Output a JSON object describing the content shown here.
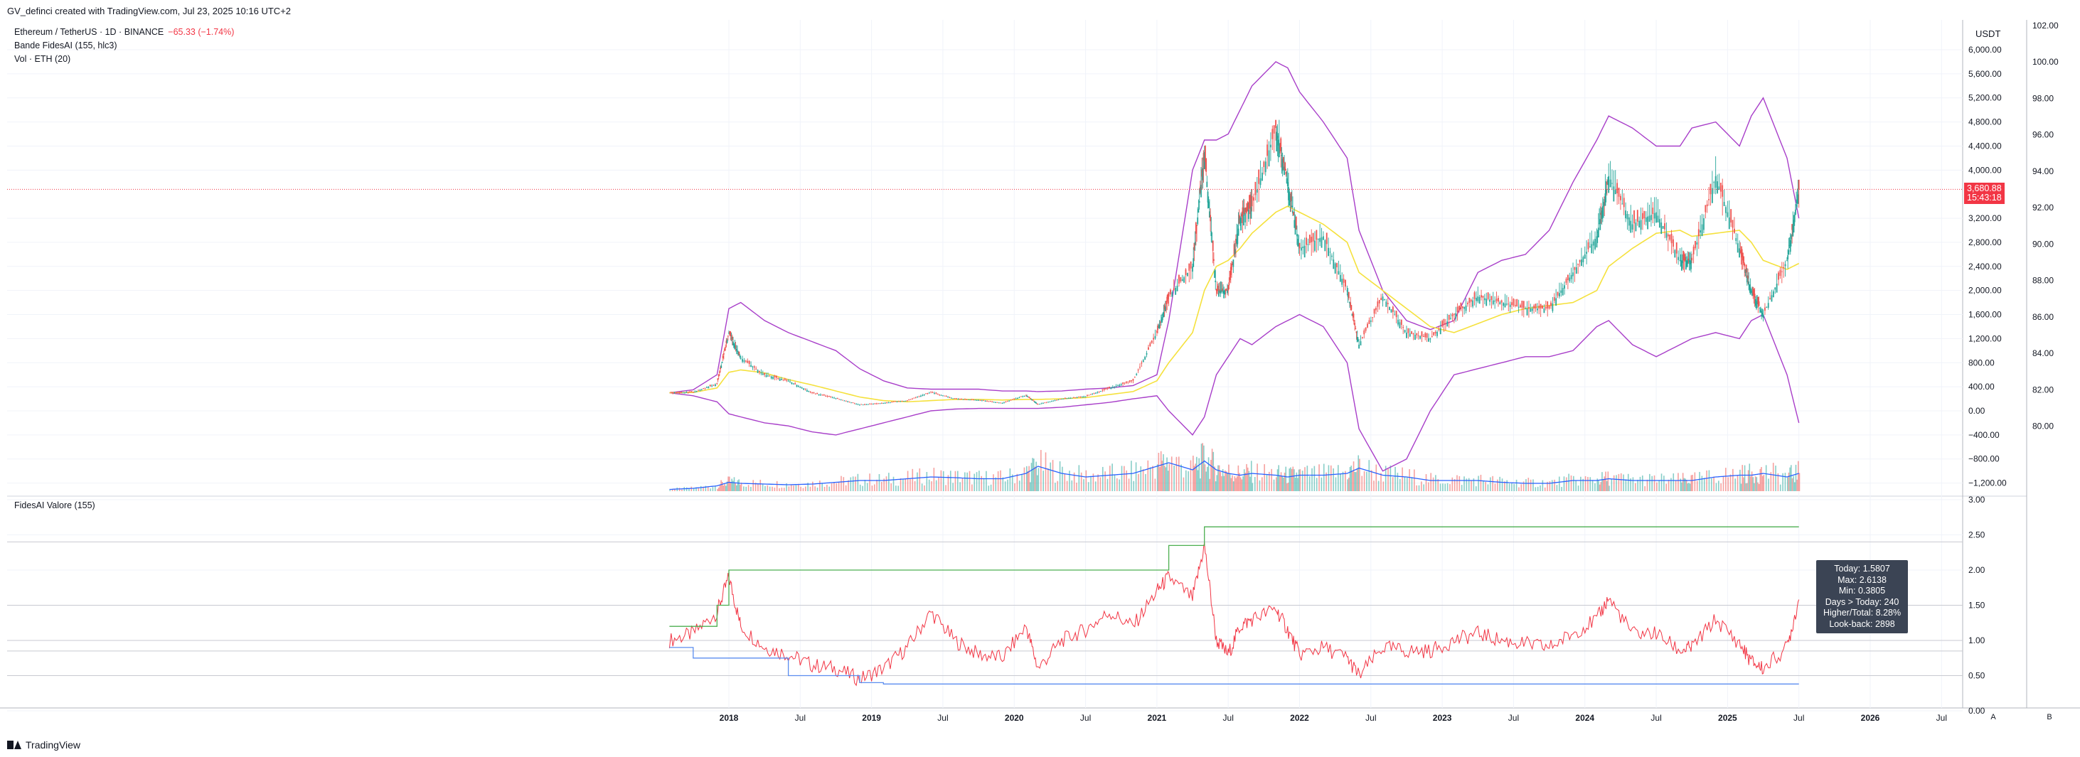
{
  "header": {
    "credit": "GV_definci created with TradingView.com, Jul 23, 2025 10:16 UTC+2"
  },
  "legend": {
    "symbol": "Ethereum / TetherUS · 1D · BINANCE",
    "change": "−65.33 (−1.74%)",
    "indicator_1": "Bande FidesAI (155, hlc3)",
    "indicator_2": "Vol · ETH (20)",
    "lower_pane_title": "FidesAI Valore (155)"
  },
  "price_axis": {
    "unit": "USDT",
    "labels": [
      "6,000.00",
      "5,600.00",
      "5,200.00",
      "4,800.00",
      "4,400.00",
      "4,000.00",
      "3,200.00",
      "2,800.00",
      "2,400.00",
      "2,000.00",
      "1,600.00",
      "1,200.00",
      "800.00",
      "400.00",
      "0.00",
      "−400.00",
      "−800.00",
      "−1,200.00"
    ],
    "current_price": "3,680.88",
    "countdown": "15:43:18"
  },
  "secondary_axis": {
    "labels": [
      "102.00",
      "100.00",
      "98.00",
      "96.00",
      "94.00",
      "92.00",
      "90.00",
      "88.00",
      "86.00",
      "84.00",
      "82.00",
      "80.00"
    ]
  },
  "lower_axis": {
    "labels": [
      "3.00",
      "2.50",
      "2.00",
      "1.50",
      "1.00",
      "0.50",
      "0.00"
    ]
  },
  "time_axis": {
    "labels": [
      "2018",
      "Jul",
      "2019",
      "Jul",
      "2020",
      "Jul",
      "2021",
      "Jul",
      "2022",
      "Jul",
      "2023",
      "Jul",
      "2024",
      "Jul",
      "2025",
      "Jul",
      "2026",
      "Jul"
    ]
  },
  "scale_buttons": {
    "a": "A",
    "b": "B"
  },
  "stats_box": {
    "lines": [
      "Today: 1.5807",
      "Max: 2.6138",
      "Min: 0.3805",
      "Days > Today: 240",
      "Higher/Total: 8.28%",
      "Look-back: 2898"
    ]
  },
  "footer": {
    "brand": "TradingView"
  },
  "colors": {
    "up": "#26a69a",
    "down": "#ef5350",
    "band": "#a83ec9",
    "midline": "#f5e13d",
    "volume_ma": "#2962ff",
    "valore_line": "#f23645",
    "max_line": "#4caf50",
    "min_line": "#5b8def",
    "price_flag": "#f23645",
    "stats_bg": "#3b4454"
  },
  "chart_data": [
    {
      "type": "line",
      "title": "Ethereum / TetherUS · 1D · BINANCE",
      "ylabel": "USDT",
      "ylim": [
        -1400,
        6200
      ],
      "x": [
        "2017-08",
        "2017-10",
        "2017-12",
        "2018-01",
        "2018-02",
        "2018-04",
        "2018-06",
        "2018-08",
        "2018-10",
        "2018-12",
        "2019-02",
        "2019-04",
        "2019-06",
        "2019-08",
        "2019-10",
        "2019-12",
        "2020-02",
        "2020-03",
        "2020-05",
        "2020-07",
        "2020-09",
        "2020-11",
        "2021-01",
        "2021-02",
        "2021-04",
        "2021-05",
        "2021-06",
        "2021-07",
        "2021-08",
        "2021-09",
        "2021-11",
        "2021-12",
        "2022-01",
        "2022-03",
        "2022-05",
        "2022-06",
        "2022-08",
        "2022-10",
        "2022-12",
        "2023-02",
        "2023-04",
        "2023-06",
        "2023-08",
        "2023-10",
        "2023-12",
        "2024-02",
        "2024-03",
        "2024-05",
        "2024-07",
        "2024-09",
        "2024-10",
        "2024-12",
        "2025-02",
        "2025-03",
        "2025-04",
        "2025-06",
        "2025-07"
      ],
      "series": [
        {
          "name": "Ethereum / TetherUS",
          "values": [
            300,
            310,
            450,
            1300,
            880,
            600,
            500,
            300,
            210,
            100,
            130,
            170,
            310,
            200,
            180,
            130,
            260,
            110,
            200,
            240,
            380,
            500,
            1300,
            1900,
            2400,
            4300,
            2000,
            2000,
            3200,
            3400,
            4700,
            3800,
            2700,
            2900,
            2000,
            1100,
            1900,
            1300,
            1200,
            1600,
            1900,
            1800,
            1700,
            1700,
            2300,
            2900,
            3900,
            3100,
            3300,
            2500,
            2500,
            3900,
            2700,
            2000,
            1600,
            2500,
            3680.88
          ]
        },
        {
          "name": "Bande FidesAI (155, hlc3)",
          "values": [
            300,
            305,
            380,
            640,
            680,
            630,
            520,
            430,
            330,
            230,
            170,
            150,
            170,
            190,
            190,
            180,
            190,
            190,
            200,
            220,
            270,
            320,
            500,
            800,
            1300,
            2000,
            2400,
            2500,
            2700,
            2950,
            3300,
            3400,
            3300,
            3100,
            2800,
            2300,
            2000,
            1700,
            1400,
            1300,
            1450,
            1600,
            1700,
            1750,
            1800,
            2000,
            2400,
            2700,
            2950,
            3000,
            2900,
            2950,
            3000,
            2800,
            2500,
            2350,
            2450
          ]
        },
        {
          "name": "Upper band",
          "values": [
            300,
            350,
            600,
            1700,
            1800,
            1500,
            1300,
            1150,
            1000,
            700,
            500,
            380,
            360,
            360,
            360,
            330,
            330,
            320,
            330,
            360,
            380,
            420,
            600,
            1500,
            4000,
            4500,
            4500,
            4600,
            5000,
            5400,
            5800,
            5700,
            5300,
            4800,
            4200,
            3000,
            2000,
            1500,
            1350,
            1500,
            2300,
            2500,
            2600,
            3000,
            3800,
            4500,
            4900,
            4700,
            4400,
            4400,
            4700,
            4800,
            4400,
            4900,
            5200,
            4200,
            3200
          ]
        },
        {
          "name": "Lower band",
          "values": [
            300,
            250,
            150,
            -50,
            -100,
            -200,
            -250,
            -350,
            -400,
            -300,
            -200,
            -100,
            0,
            30,
            40,
            40,
            40,
            40,
            60,
            100,
            140,
            200,
            250,
            0,
            -400,
            -100,
            600,
            900,
            1200,
            1100,
            1400,
            1500,
            1600,
            1400,
            800,
            -300,
            -1000,
            -800,
            0,
            600,
            700,
            800,
            900,
            900,
            1000,
            1400,
            1500,
            1100,
            900,
            1100,
            1200,
            1300,
            1200,
            1500,
            1600,
            600,
            -200
          ]
        },
        {
          "name": "Vol · ETH (20)",
          "values": [
            0.05,
            0.08,
            0.15,
            0.25,
            0.22,
            0.2,
            0.18,
            0.2,
            0.25,
            0.3,
            0.3,
            0.35,
            0.4,
            0.38,
            0.35,
            0.35,
            0.5,
            0.7,
            0.5,
            0.4,
            0.45,
            0.5,
            0.7,
            0.8,
            0.6,
            0.85,
            0.6,
            0.5,
            0.45,
            0.5,
            0.45,
            0.4,
            0.45,
            0.45,
            0.5,
            0.65,
            0.45,
            0.4,
            0.3,
            0.3,
            0.3,
            0.25,
            0.22,
            0.22,
            0.3,
            0.3,
            0.35,
            0.3,
            0.3,
            0.3,
            0.3,
            0.4,
            0.45,
            0.45,
            0.5,
            0.4,
            0.5
          ]
        }
      ]
    },
    {
      "type": "line",
      "title": "FidesAI Valore (155)",
      "ylim": [
        0,
        3
      ],
      "x": [
        "2017-08",
        "2017-10",
        "2017-12",
        "2018-01",
        "2018-02",
        "2018-04",
        "2018-06",
        "2018-08",
        "2018-10",
        "2018-12",
        "2019-02",
        "2019-04",
        "2019-06",
        "2019-08",
        "2019-10",
        "2019-12",
        "2020-02",
        "2020-03",
        "2020-05",
        "2020-07",
        "2020-09",
        "2020-11",
        "2021-01",
        "2021-02",
        "2021-04",
        "2021-05",
        "2021-06",
        "2021-07",
        "2021-08",
        "2021-09",
        "2021-11",
        "2021-12",
        "2022-01",
        "2022-03",
        "2022-05",
        "2022-06",
        "2022-08",
        "2022-10",
        "2022-12",
        "2023-02",
        "2023-04",
        "2023-06",
        "2023-08",
        "2023-10",
        "2023-12",
        "2024-02",
        "2024-03",
        "2024-05",
        "2024-07",
        "2024-09",
        "2024-10",
        "2024-12",
        "2025-02",
        "2025-03",
        "2025-04",
        "2025-06",
        "2025-07"
      ],
      "series": [
        {
          "name": "FidesAI Valore (155)",
          "values": [
            1.0,
            1.1,
            1.4,
            1.9,
            1.2,
            0.9,
            0.8,
            0.65,
            0.6,
            0.45,
            0.6,
            0.9,
            1.4,
            1.0,
            0.8,
            0.75,
            1.2,
            0.6,
            1.0,
            1.15,
            1.4,
            1.2,
            1.7,
            1.9,
            1.6,
            2.35,
            1.0,
            0.8,
            1.2,
            1.3,
            1.45,
            1.15,
            0.8,
            0.9,
            0.75,
            0.5,
            0.9,
            0.85,
            0.85,
            1.0,
            1.1,
            1.0,
            0.95,
            0.9,
            1.1,
            1.3,
            1.6,
            1.1,
            1.1,
            0.85,
            0.9,
            1.3,
            0.95,
            0.7,
            0.6,
            0.9,
            1.5807
          ]
        },
        {
          "name": "Max",
          "values": [
            1.2,
            1.2,
            1.5,
            2.0,
            2.0,
            2.0,
            2.0,
            2.0,
            2.0,
            2.0,
            2.0,
            2.0,
            2.0,
            2.0,
            2.0,
            2.0,
            2.0,
            2.0,
            2.0,
            2.0,
            2.0,
            2.0,
            2.0,
            2.35,
            2.35,
            2.6138,
            2.6138,
            2.6138,
            2.6138,
            2.6138,
            2.6138,
            2.6138,
            2.6138,
            2.6138,
            2.6138,
            2.6138,
            2.6138,
            2.6138,
            2.6138,
            2.6138,
            2.6138,
            2.6138,
            2.6138,
            2.6138,
            2.6138,
            2.6138,
            2.6138,
            2.6138,
            2.6138,
            2.6138,
            2.6138,
            2.6138,
            2.6138,
            2.6138,
            2.6138,
            2.6138,
            2.6138
          ]
        },
        {
          "name": "Min",
          "values": [
            0.9,
            0.75,
            0.75,
            0.75,
            0.75,
            0.75,
            0.5,
            0.5,
            0.5,
            0.4,
            0.3805,
            0.3805,
            0.3805,
            0.3805,
            0.3805,
            0.3805,
            0.3805,
            0.3805,
            0.3805,
            0.3805,
            0.3805,
            0.3805,
            0.3805,
            0.3805,
            0.3805,
            0.3805,
            0.3805,
            0.3805,
            0.3805,
            0.3805,
            0.3805,
            0.3805,
            0.3805,
            0.3805,
            0.3805,
            0.3805,
            0.3805,
            0.3805,
            0.3805,
            0.3805,
            0.3805,
            0.3805,
            0.3805,
            0.3805,
            0.3805,
            0.3805,
            0.3805,
            0.3805,
            0.3805,
            0.3805,
            0.3805,
            0.3805,
            0.3805,
            0.3805,
            0.3805,
            0.3805,
            0.3805
          ]
        }
      ]
    }
  ]
}
